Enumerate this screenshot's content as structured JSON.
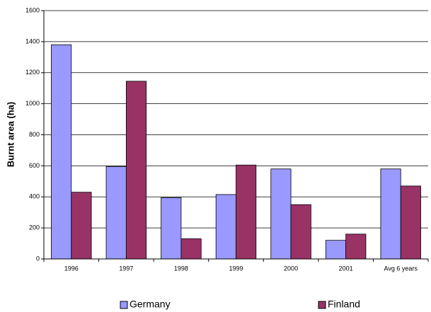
{
  "chart_data": {
    "type": "bar",
    "ylabel": "Burnt area (ha)",
    "categories": [
      "1996",
      "1997",
      "1998",
      "1999",
      "2000",
      "2001",
      "Avg 6 years"
    ],
    "series": [
      {
        "name": "Germany",
        "color": "#9999ff",
        "values": [
          1380,
          595,
          395,
          415,
          580,
          120,
          580
        ]
      },
      {
        "name": "Finland",
        "color": "#993366",
        "values": [
          430,
          1145,
          130,
          605,
          350,
          160,
          470
        ]
      }
    ],
    "ylim": [
      0,
      1600
    ],
    "yticks": [
      0,
      200,
      400,
      600,
      800,
      1000,
      1200,
      1400,
      1600
    ],
    "grid": true,
    "legend": "bottom"
  }
}
